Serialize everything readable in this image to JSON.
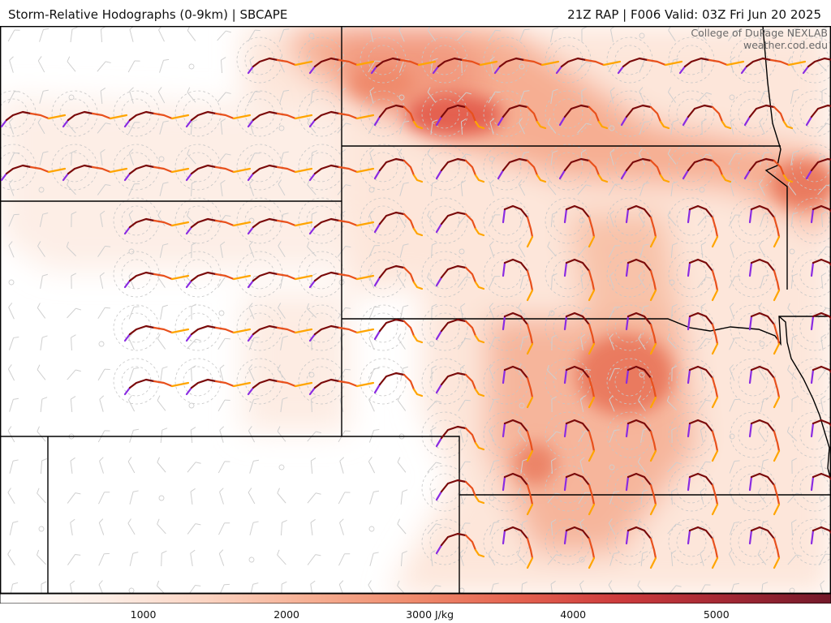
{
  "header": {
    "title_left": "Storm-Relative Hodographs (0-9km) | SBCAPE",
    "title_right": "21Z RAP | F006 Valid: 03Z Fri Jun 20 2025"
  },
  "credit": {
    "line1": "College of DuPage NEXLAB",
    "line2": "weather.cod.edu"
  },
  "field": {
    "name": "SBCAPE",
    "unit": "J/kg",
    "max": 5800
  },
  "colorbar": {
    "min": 0,
    "max": 5800,
    "ticks": [
      {
        "value": 1000,
        "label": "1000"
      },
      {
        "value": 2000,
        "label": "2000"
      },
      {
        "value": 3000,
        "label": "3000 J/kg"
      },
      {
        "value": 4000,
        "label": "4000"
      },
      {
        "value": 5000,
        "label": "5000"
      }
    ],
    "colors": [
      "#ffffff",
      "#fdeee6",
      "#fbd3c1",
      "#f6ae92",
      "#ef8a6c",
      "#e4614f",
      "#cc3a3c",
      "#a32834",
      "#73192a"
    ]
  },
  "hodograph_colors": [
    "#8a2be2",
    "#7a0a0a",
    "#e8501c",
    "#ffa500"
  ],
  "icons": [
    "hodograph-glyph",
    "wind-barb-glyph",
    "calm-circle-glyph"
  ]
}
